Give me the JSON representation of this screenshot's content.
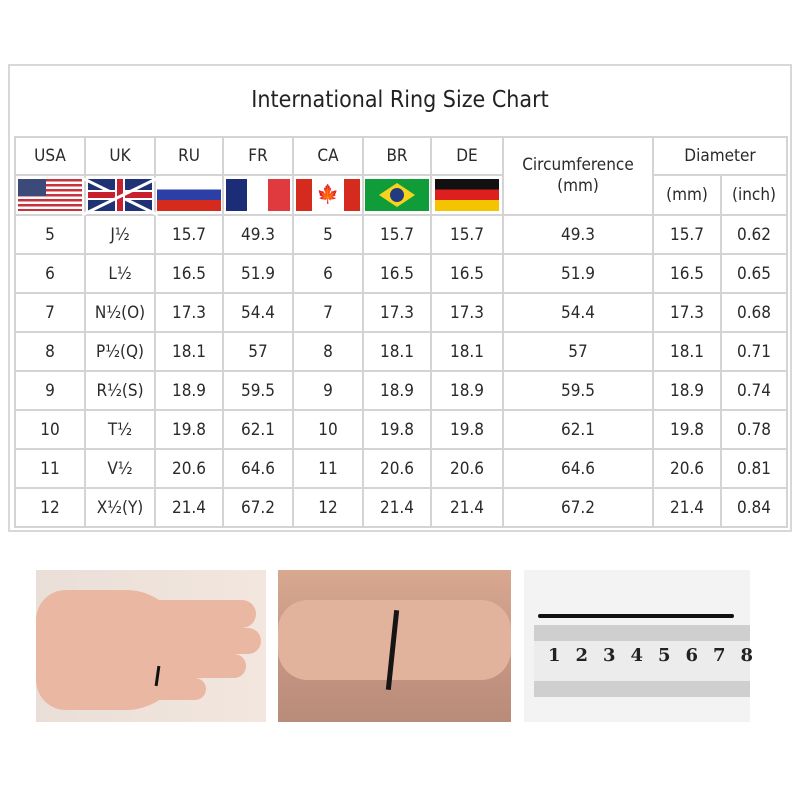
{
  "title": "International Ring Size Chart",
  "headers": {
    "usa": "USA",
    "uk": "UK",
    "ru": "RU",
    "fr": "FR",
    "ca": "CA",
    "br": "BR",
    "de": "DE",
    "circumference": "Circumference\n(mm)",
    "diameter": "Diameter",
    "diameter_mm": "(mm)",
    "diameter_inch": "(inch)"
  },
  "flags": [
    "us-flag",
    "uk-flag",
    "russia-flag",
    "france-flag",
    "canada-flag",
    "brazil-flag",
    "germany-flag"
  ],
  "rows": [
    [
      "5",
      "J½",
      "15.7",
      "49.3",
      "5",
      "15.7",
      "15.7",
      "49.3",
      "15.7",
      "0.62"
    ],
    [
      "6",
      "L½",
      "16.5",
      "51.9",
      "6",
      "16.5",
      "16.5",
      "51.9",
      "16.5",
      "0.65"
    ],
    [
      "7",
      "N½(O)",
      "17.3",
      "54.4",
      "7",
      "17.3",
      "17.3",
      "54.4",
      "17.3",
      "0.68"
    ],
    [
      "8",
      "P½(Q)",
      "18.1",
      "57",
      "8",
      "18.1",
      "18.1",
      "57",
      "18.1",
      "0.71"
    ],
    [
      "9",
      "R½(S)",
      "18.9",
      "59.5",
      "9",
      "18.9",
      "18.9",
      "59.5",
      "18.9",
      "0.74"
    ],
    [
      "10",
      "T½",
      "19.8",
      "62.1",
      "10",
      "19.8",
      "19.8",
      "62.1",
      "19.8",
      "0.78"
    ],
    [
      "11",
      "V½",
      "20.6",
      "64.6",
      "11",
      "20.6",
      "20.6",
      "64.6",
      "20.6",
      "0.81"
    ],
    [
      "12",
      "X½(Y)",
      "21.4",
      "67.2",
      "12",
      "21.4",
      "21.4",
      "67.2",
      "21.4",
      "0.84"
    ]
  ],
  "ruler": {
    "numbers": [
      "1",
      "2",
      "3",
      "4",
      "5",
      "6",
      "7",
      "8"
    ]
  }
}
